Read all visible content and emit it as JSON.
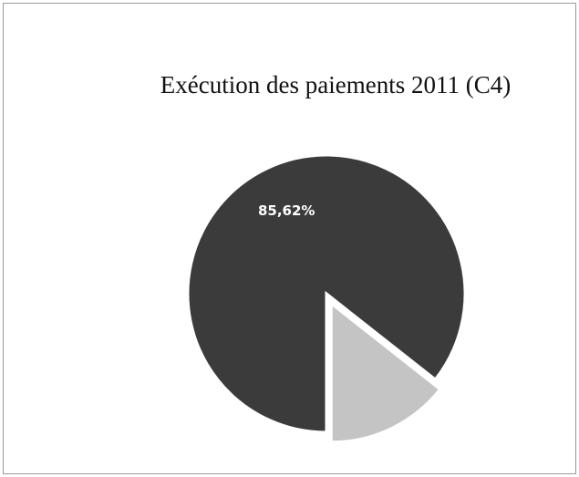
{
  "chart_data": {
    "type": "pie",
    "title": "Exécution des paiements 2011 (C4)",
    "values": [
      85.62,
      14.38
    ],
    "value_labels": [
      "85,62%",
      null
    ],
    "colors": [
      "#3b3b3b",
      "#c4c4c4"
    ]
  }
}
